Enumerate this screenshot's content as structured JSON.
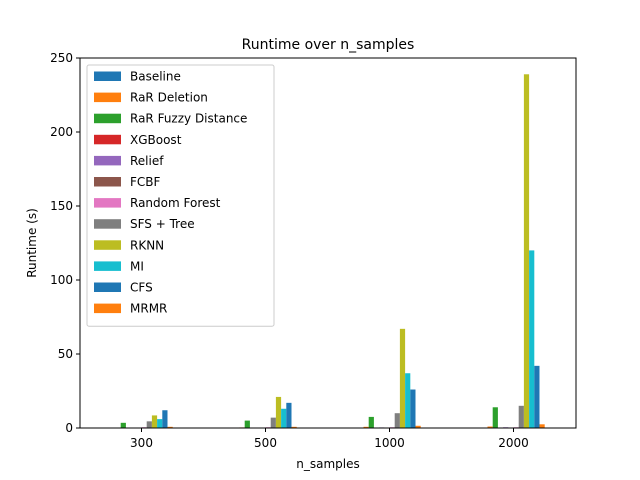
{
  "chart_data": {
    "type": "bar",
    "title": "Runtime over n_samples",
    "xlabel": "n_samples",
    "ylabel": "Runtime (s)",
    "ylim": [
      0,
      250
    ],
    "yticks": [
      0,
      50,
      100,
      150,
      200,
      250
    ],
    "categories": [
      "300",
      "500",
      "1000",
      "2000"
    ],
    "legend_position": "top-left",
    "grid": false,
    "series": [
      {
        "name": "Baseline",
        "color": "#1f77b4",
        "values": [
          0,
          0,
          0,
          0
        ]
      },
      {
        "name": "RaR Deletion",
        "color": "#ff7f0e",
        "values": [
          0.2,
          0.4,
          0.8,
          1.0
        ]
      },
      {
        "name": "RaR Fuzzy Distance",
        "color": "#2ca02c",
        "values": [
          3.5,
          5,
          7.5,
          14
        ]
      },
      {
        "name": "XGBoost",
        "color": "#d62728",
        "values": [
          0.1,
          0.1,
          0.2,
          0.3
        ]
      },
      {
        "name": "Relief",
        "color": "#9467bd",
        "values": [
          0.2,
          0.3,
          0.4,
          0.5
        ]
      },
      {
        "name": "FCBF",
        "color": "#8c564b",
        "values": [
          0.2,
          0.2,
          0.3,
          0.3
        ]
      },
      {
        "name": "Random Forest",
        "color": "#e377c2",
        "values": [
          0.5,
          0.5,
          0.5,
          0.5
        ]
      },
      {
        "name": "SFS + Tree",
        "color": "#7f7f7f",
        "values": [
          4.5,
          7,
          10,
          15
        ]
      },
      {
        "name": "RKNN",
        "color": "#bcbd22",
        "values": [
          8.5,
          21,
          67,
          239
        ]
      },
      {
        "name": "MI",
        "color": "#17becf",
        "values": [
          6,
          13,
          37,
          120
        ]
      },
      {
        "name": "CFS",
        "color": "#1f77b4",
        "values": [
          12,
          17,
          26,
          42
        ]
      },
      {
        "name": "MRMR",
        "color": "#ff7f0e",
        "values": [
          0.8,
          0.8,
          1.5,
          2.5
        ]
      }
    ]
  }
}
